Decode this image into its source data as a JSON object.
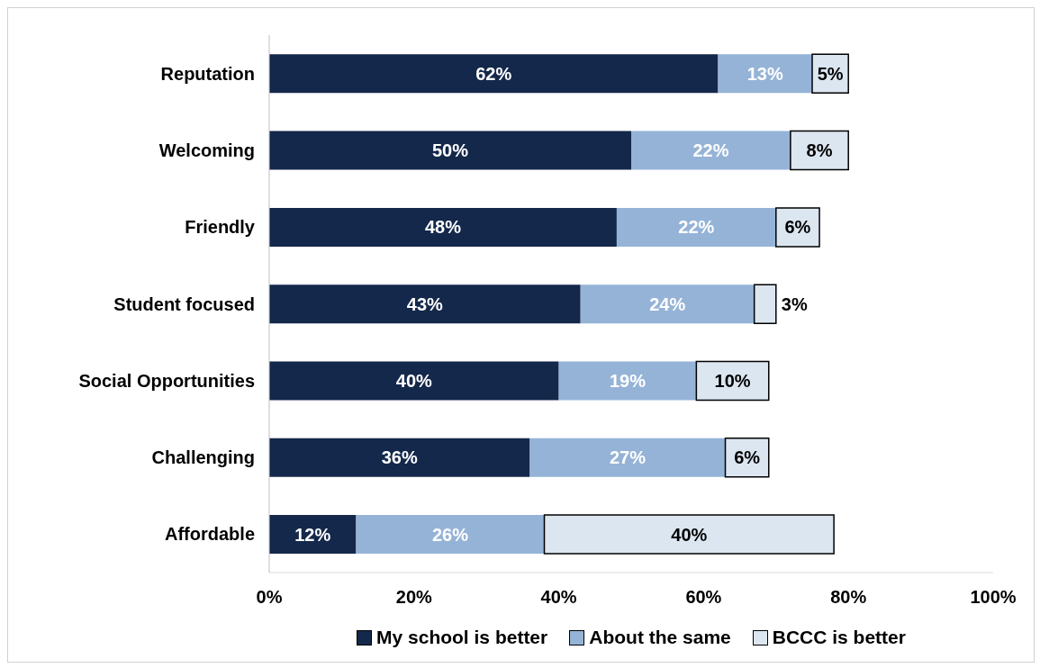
{
  "chart_data": {
    "type": "bar",
    "orientation": "horizontal",
    "stacked": true,
    "categories": [
      "Reputation",
      "Welcoming",
      "Friendly",
      "Student focused",
      "Social Opportunities",
      "Challenging",
      "Affordable"
    ],
    "series": [
      {
        "name": "My school is better",
        "color": "#14284b",
        "values": [
          62,
          50,
          48,
          43,
          40,
          36,
          12
        ],
        "value_labels": [
          "62%",
          "50%",
          "48%",
          "43%",
          "40%",
          "36%",
          "12%"
        ]
      },
      {
        "name": "About the same",
        "color": "#95b3d7",
        "values": [
          13,
          22,
          22,
          24,
          19,
          27,
          26
        ],
        "value_labels": [
          "13%",
          "22%",
          "22%",
          "24%",
          "19%",
          "27%",
          "26%"
        ]
      },
      {
        "name": "BCCC is better",
        "color": "#dce6f1",
        "values": [
          5,
          8,
          6,
          3,
          10,
          6,
          40
        ],
        "value_labels": [
          "5%",
          "8%",
          "6%",
          "3%",
          "10%",
          "6%",
          "40%"
        ]
      }
    ],
    "xlim": [
      0,
      100
    ],
    "xticks": [
      {
        "value": 0,
        "label": "0%"
      },
      {
        "value": 20,
        "label": "20%"
      },
      {
        "value": 40,
        "label": "40%"
      },
      {
        "value": 60,
        "label": "60%"
      },
      {
        "value": 80,
        "label": "80%"
      },
      {
        "value": 100,
        "label": "100%"
      }
    ],
    "grid": false,
    "legend": "bottom"
  }
}
